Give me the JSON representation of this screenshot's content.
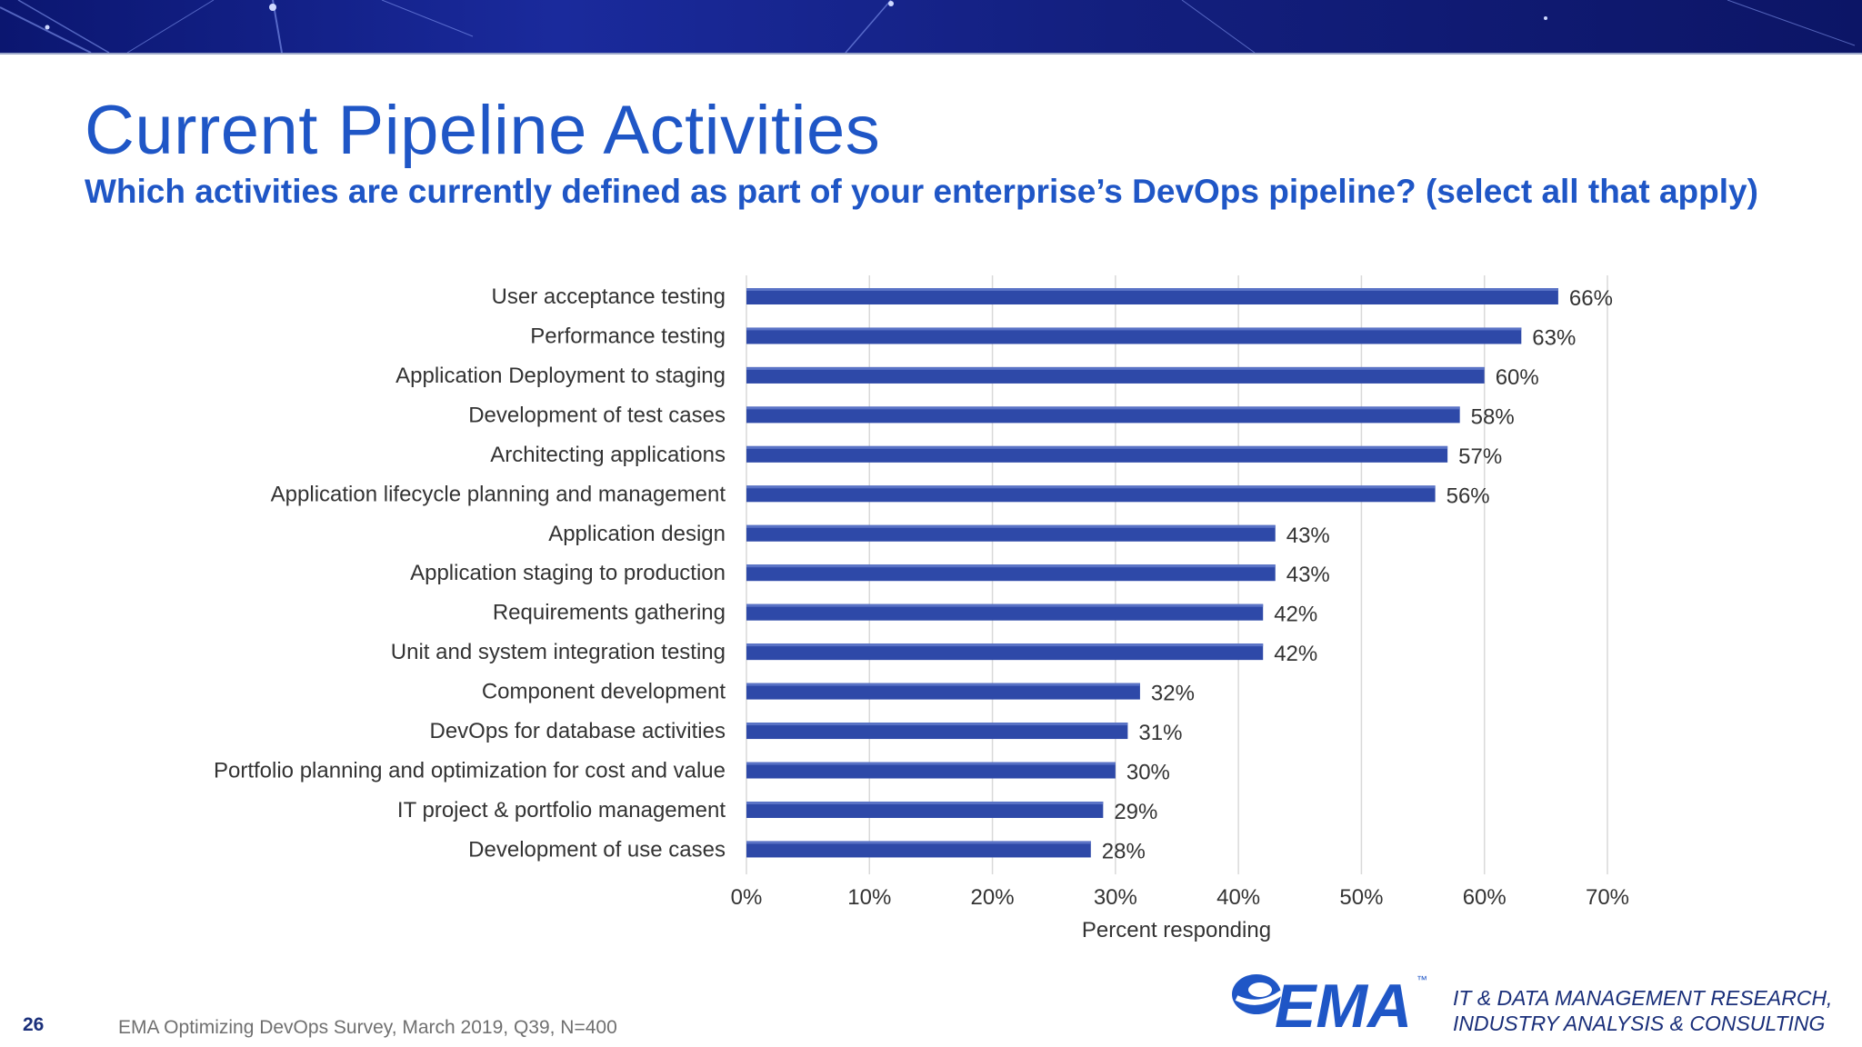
{
  "header": {
    "title": "Current Pipeline Activities",
    "subtitle": "Which activities are currently defined as part of your enterprise’s DevOps pipeline?  (select all that apply)"
  },
  "chart_data": {
    "type": "bar",
    "orientation": "horizontal",
    "categories": [
      "User acceptance testing",
      "Performance testing",
      "Application Deployment to staging",
      "Development of test cases",
      "Architecting applications",
      "Application lifecycle planning and management",
      "Application design",
      "Application staging to production",
      "Requirements gathering",
      "Unit and system integration testing",
      "Component development",
      "DevOps for database activities",
      "Portfolio planning and optimization for cost and value",
      "IT project & portfolio management",
      "Development of use cases"
    ],
    "values": [
      66,
      63,
      60,
      58,
      57,
      56,
      43,
      43,
      42,
      42,
      32,
      31,
      30,
      29,
      28
    ],
    "value_labels": [
      "66%",
      "63%",
      "60%",
      "58%",
      "57%",
      "56%",
      "43%",
      "43%",
      "42%",
      "42%",
      "32%",
      "31%",
      "30%",
      "29%",
      "28%"
    ],
    "xticks": [
      "0%",
      "10%",
      "20%",
      "30%",
      "40%",
      "50%",
      "60%",
      "70%"
    ],
    "xlabel": "Percent responding",
    "xlim": [
      0,
      70
    ],
    "grid": "vertical",
    "bar_color": "#2e49a8"
  },
  "footer": {
    "page_number": "26",
    "source": "EMA  Optimizing DevOps Survey, March 2019, Q39, N=400",
    "logo_text": "EMA",
    "trademark": "™",
    "tagline_line1": "IT & DATA MANAGEMENT RESEARCH,",
    "tagline_line2": "INDUSTRY ANALYSIS & CONSULTING"
  }
}
